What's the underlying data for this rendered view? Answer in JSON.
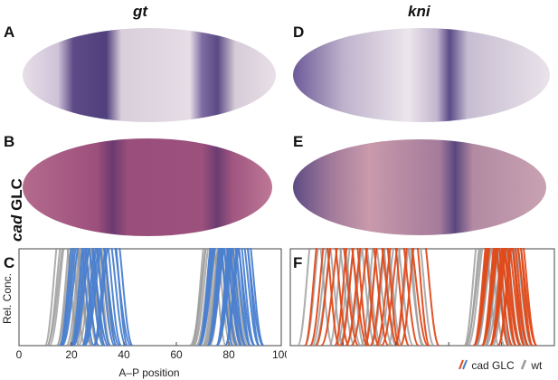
{
  "figure": {
    "column_titles": [
      "gt",
      "kni"
    ],
    "row_label_italic": "cad",
    "row_label_rest": " GLC",
    "panel_labels": [
      "A",
      "B",
      "C",
      "D",
      "E",
      "F"
    ]
  },
  "colors": {
    "cad_glc": "#4a7fd0",
    "cad_glc_f": "#e04a1a",
    "wt": "#9a9a9a"
  },
  "chart_data": [
    {
      "type": "line",
      "panel": "C",
      "ylabel": "Rel. Conc.",
      "xlabel": "A–P position",
      "x_ticks": [
        0,
        20,
        40,
        60,
        80,
        100
      ],
      "xlim": [
        0,
        100
      ],
      "ylim": [
        0,
        1
      ],
      "series": [
        {
          "name": "wt",
          "color": "#9a9a9a",
          "peaks": [
            [
              17,
              30
            ],
            [
              73,
              80
            ]
          ],
          "width": 6
        },
        {
          "name": "cad GLC",
          "color": "#4a7fd0",
          "peaks": [
            [
              22,
              36
            ],
            [
              75,
              86
            ]
          ],
          "width": 6
        }
      ]
    },
    {
      "type": "line",
      "panel": "F",
      "xlim": [
        0,
        100
      ],
      "ylim": [
        0,
        1
      ],
      "series": [
        {
          "name": "wt",
          "color": "#9a9a9a",
          "peaks": [
            [
              10,
              47
            ],
            [
              73,
              84
            ]
          ],
          "width": 6
        },
        {
          "name": "cad GLC",
          "color": "#e04a1a",
          "peaks": [
            [
              12,
              49
            ],
            [
              76,
              86
            ]
          ],
          "width": 6
        }
      ]
    }
  ],
  "legend": {
    "cad_label": "cad GLC",
    "wt_label": "wt"
  }
}
